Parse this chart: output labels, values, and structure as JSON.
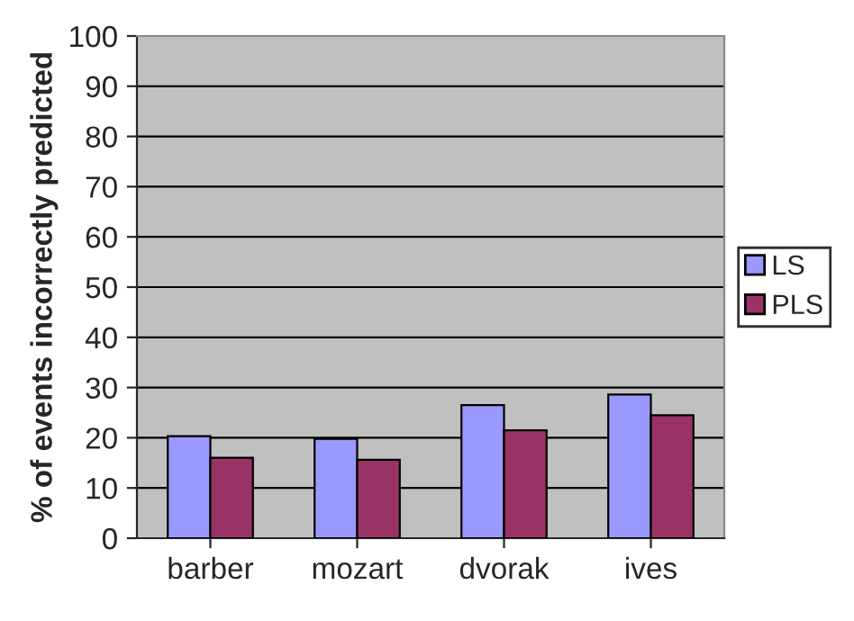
{
  "chart_data": {
    "type": "bar",
    "ylabel": "% of events incorrectly predicted",
    "categories": [
      "barber",
      "mozart",
      "dvorak",
      "ives"
    ],
    "series": [
      {
        "name": "LS",
        "color": "#9999ff",
        "values": [
          20.3,
          19.8,
          26.5,
          28.6
        ]
      },
      {
        "name": "PLS",
        "color": "#993366",
        "values": [
          16.0,
          15.6,
          21.5,
          24.5
        ]
      }
    ],
    "ylim": [
      0,
      100
    ],
    "yticks": [
      0,
      10,
      20,
      30,
      40,
      50,
      60,
      70,
      80,
      90,
      100
    ],
    "grid": "y",
    "legend": "right"
  }
}
